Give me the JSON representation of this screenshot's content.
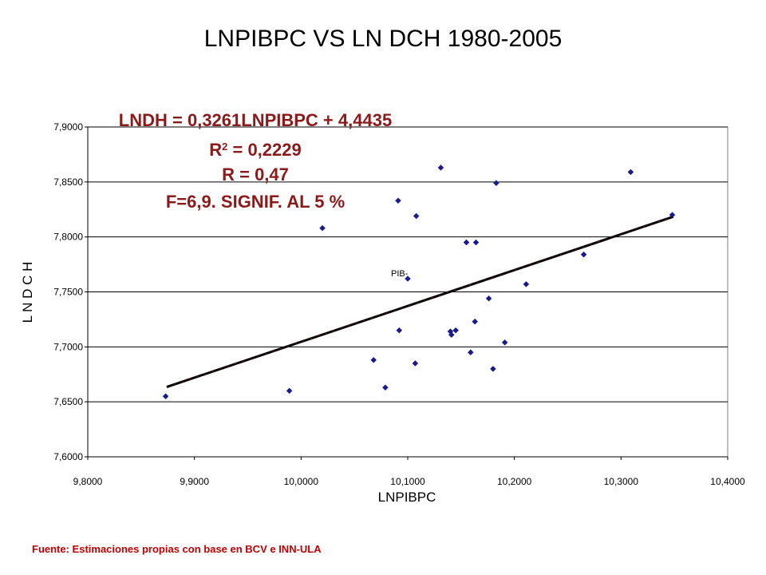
{
  "chart_data": {
    "type": "scatter",
    "title": "LNPIBPC VS LN DCH 1980-2005",
    "xlabel": "LNPIBPC",
    "ylabel": "L N D C H",
    "xlim": [
      9.8,
      10.4
    ],
    "ylim": [
      7.6,
      7.9
    ],
    "x_ticks": [
      "9,8000",
      "9,9000",
      "10,0000",
      "10,1000",
      "10,2000",
      "10,3000",
      "10,4000"
    ],
    "y_ticks": [
      "7,6000",
      "7,6500",
      "7,7000",
      "7,7500",
      "7,8000",
      "7,8500",
      "7,9000"
    ],
    "grid": "horizontal",
    "point_color": "#1a1a8c",
    "line_color": "#000000",
    "series": [
      {
        "type": "scatter",
        "points": [
          [
            9.873,
            7.655
          ],
          [
            9.989,
            7.66
          ],
          [
            10.02,
            7.808
          ],
          [
            10.068,
            7.688
          ],
          [
            10.079,
            7.663
          ],
          [
            10.091,
            7.833
          ],
          [
            10.092,
            7.715
          ],
          [
            10.1,
            7.762
          ],
          [
            10.107,
            7.685
          ],
          [
            10.108,
            7.819
          ],
          [
            10.131,
            7.863
          ],
          [
            10.14,
            7.714
          ],
          [
            10.141,
            7.711
          ],
          [
            10.145,
            7.715
          ],
          [
            10.155,
            7.795
          ],
          [
            10.159,
            7.695
          ],
          [
            10.163,
            7.723
          ],
          [
            10.164,
            7.795
          ],
          [
            10.176,
            7.744
          ],
          [
            10.18,
            7.68
          ],
          [
            10.183,
            7.849
          ],
          [
            10.191,
            7.704
          ],
          [
            10.211,
            7.757
          ],
          [
            10.265,
            7.784
          ],
          [
            10.309,
            7.859
          ],
          [
            10.348,
            7.82
          ]
        ]
      },
      {
        "type": "line",
        "points": [
          [
            9.874,
            7.6635
          ],
          [
            10.349,
            7.8184
          ]
        ]
      }
    ],
    "annotations": [
      {
        "text": "LNDH = 0,3261LNPIBPC + 4,4435"
      },
      {
        "text": "R2 = 0,2229"
      },
      {
        "text": "R = 0,47"
      },
      {
        "text": "F=6,9. SIGNIF. AL 5 %"
      },
      {
        "text": "PIB-"
      }
    ]
  },
  "source_note": "Fuente: Estimaciones propias con base en BCV e INN-ULA"
}
